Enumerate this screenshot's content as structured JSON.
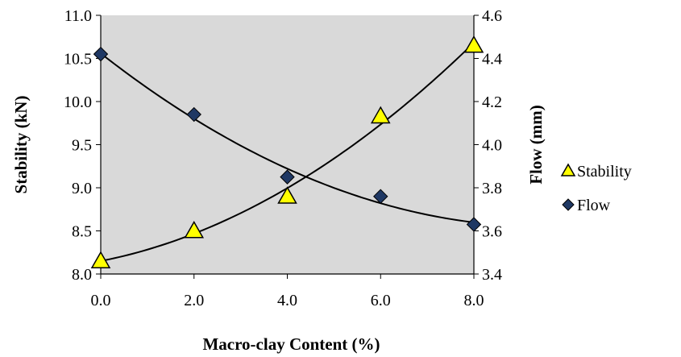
{
  "chart_data": {
    "type": "scatter",
    "x": [
      0.0,
      2.0,
      4.0,
      6.0,
      8.0
    ],
    "x_tick_labels": [
      "0.0",
      "2.0",
      "4.0",
      "6.0",
      "8.0"
    ],
    "xlabel": "Macro-clay Content (%)",
    "ylabel_left": "Stability (kN)",
    "ylabel_right": "Flow (mm)",
    "ylim_left": [
      8.0,
      11.0
    ],
    "ylim_right": [
      3.4,
      4.6
    ],
    "xlim": [
      0.0,
      8.0
    ],
    "y_left_tick_labels": [
      "11.0",
      "10.5",
      "10.0",
      "9.5",
      "9.0",
      "8.5",
      "8.0"
    ],
    "y_right_tick_labels": [
      "4.6",
      "4.4",
      "4.2",
      "4.0",
      "3.8",
      "3.6",
      "3.4"
    ],
    "plot_background": "#d9d9d9",
    "grid": false,
    "legend_position": "right",
    "series": [
      {
        "name": "Stability",
        "axis": "left",
        "marker": "triangle",
        "marker_fill": "#ffff00",
        "marker_stroke": "#000000",
        "values": [
          8.15,
          8.5,
          8.9,
          9.83,
          10.65
        ],
        "trendline": "polynomial"
      },
      {
        "name": "Flow",
        "axis": "right",
        "marker": "diamond",
        "marker_fill": "#1f3864",
        "marker_stroke": "#000000",
        "values": [
          4.42,
          4.14,
          3.85,
          3.76,
          3.63
        ],
        "trendline": "polynomial"
      }
    ]
  }
}
